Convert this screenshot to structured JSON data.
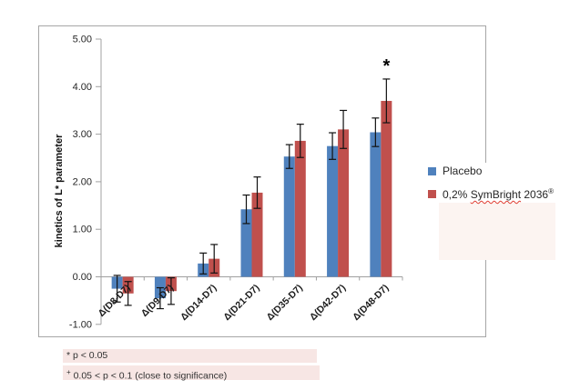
{
  "chart_data": {
    "type": "bar",
    "title": "",
    "xlabel": "",
    "ylabel": "kinetics of L* parameter",
    "ylim": [
      -1.0,
      5.0
    ],
    "grid": false,
    "legend_position": "right",
    "yticks": [
      {
        "value": 5.0,
        "label": "5.00"
      },
      {
        "value": 4.0,
        "label": "4.00"
      },
      {
        "value": 3.0,
        "label": "3.00"
      },
      {
        "value": 2.0,
        "label": "2.00"
      },
      {
        "value": 1.0,
        "label": "1.00"
      },
      {
        "value": 0.0,
        "label": "0.00"
      },
      {
        "value": -1.0,
        "label": "-1.00"
      }
    ],
    "categories": [
      "Δ(D8-D7)",
      "Δ(D9-D7)",
      "Δ(D14-D7)",
      "Δ(D21-D7)",
      "Δ(D35-D7)",
      "Δ(D42-D7)",
      "Δ(D48-D7)"
    ],
    "series": [
      {
        "name": "Placebo",
        "color": "#4f81bd",
        "values": [
          -0.25,
          -0.45,
          0.28,
          1.42,
          2.53,
          2.75,
          3.04
        ],
        "errors": [
          0.28,
          0.22,
          0.22,
          0.3,
          0.25,
          0.28,
          0.3
        ]
      },
      {
        "name": "0,2% SymBright 2036®",
        "color": "#c0504d",
        "values": [
          -0.35,
          -0.3,
          0.38,
          1.77,
          2.86,
          3.1,
          3.7
        ],
        "errors": [
          0.25,
          0.28,
          0.3,
          0.33,
          0.35,
          0.4,
          0.46
        ]
      }
    ],
    "annotations": [
      {
        "symbol": "*",
        "category_index": 6,
        "series_index": 1
      }
    ]
  },
  "legend": {
    "items": [
      {
        "label": "Placebo",
        "color": "#4f81bd"
      },
      {
        "prefix": "0,2% ",
        "brand": "SymBright",
        "suffix": " 2036",
        "registered": "®",
        "color": "#c0504d"
      }
    ]
  },
  "footnotes": {
    "line1": "* p < 0.05",
    "line2_sup": "+",
    "line2_text": " 0.05 < p < 0.1 (close to significance)"
  }
}
